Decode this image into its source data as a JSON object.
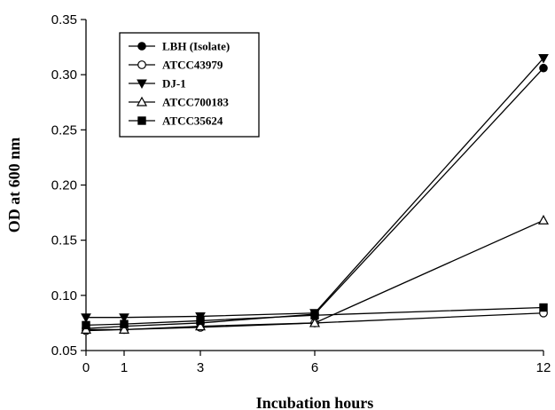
{
  "chart_data": {
    "type": "line",
    "xlabel": "Incubation hours",
    "ylabel": "OD at 600 nm",
    "x": [
      0,
      1,
      3,
      6,
      12
    ],
    "x_ticks": [
      0,
      1,
      3,
      6,
      12
    ],
    "x_tick_labels": [
      "0",
      "1",
      "3",
      "6",
      "12"
    ],
    "xlim": [
      0,
      12
    ],
    "ylim": [
      0.05,
      0.35
    ],
    "y_ticks": [
      0.05,
      0.1,
      0.15,
      0.2,
      0.25,
      0.3,
      0.35
    ],
    "y_tick_labels": [
      "0.05",
      "0.10",
      "0.15",
      "0.20",
      "0.25",
      "0.30",
      "0.35"
    ],
    "grid": false,
    "legend_position": "top-left",
    "series": [
      {
        "name": "LBH (Isolate)",
        "marker": "filled-circle",
        "values": [
          0.07,
          0.072,
          0.075,
          0.083,
          0.306
        ]
      },
      {
        "name": "ATCC43979",
        "marker": "open-circle",
        "values": [
          0.068,
          0.069,
          0.071,
          0.075,
          0.084
        ]
      },
      {
        "name": "DJ-1",
        "marker": "filled-triangle-down",
        "values": [
          0.08,
          0.08,
          0.081,
          0.084,
          0.315
        ]
      },
      {
        "name": "ATCC700183",
        "marker": "open-triangle-up",
        "values": [
          0.069,
          0.069,
          0.072,
          0.075,
          0.168
        ]
      },
      {
        "name": "ATCC35624",
        "marker": "filled-square",
        "values": [
          0.073,
          0.074,
          0.077,
          0.082,
          0.089
        ]
      }
    ]
  }
}
